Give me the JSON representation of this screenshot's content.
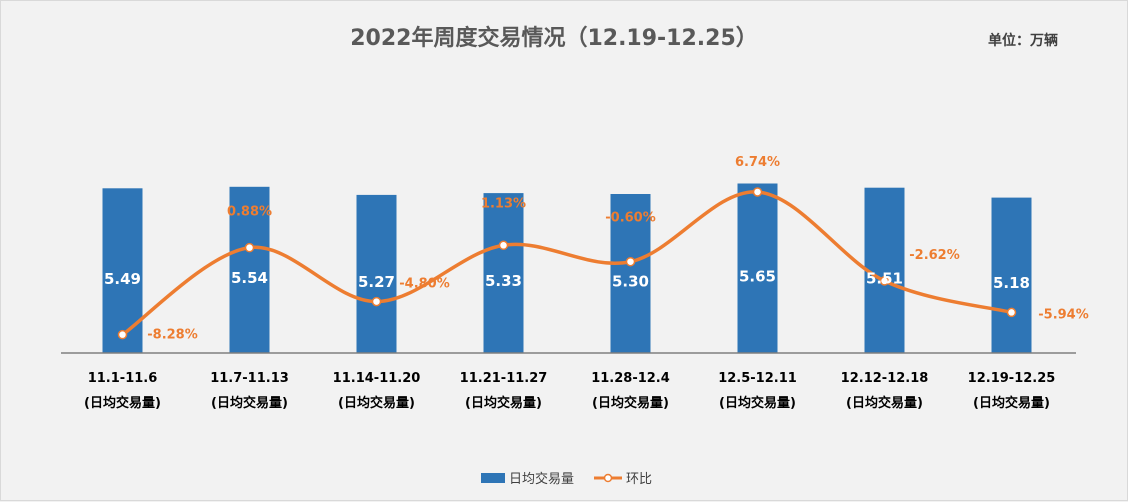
{
  "chart_data": {
    "type": "bar",
    "title": "2022年周度交易情况（12.19-12.25）",
    "unit": "单位：万辆",
    "categories": [
      "11.1-11.6",
      "11.7-11.13",
      "11.14-11.20",
      "11.21-11.27",
      "11.28-12.4",
      "12.5-12.11",
      "12.12-12.18",
      "12.19-12.25"
    ],
    "category_sub": "(日均交易量)",
    "series": [
      {
        "name": "日均交易量",
        "kind": "bar",
        "values": [
          5.49,
          5.54,
          5.27,
          5.33,
          5.3,
          5.65,
          5.51,
          5.18
        ],
        "labels": [
          "5.49",
          "5.54",
          "5.27",
          "5.33",
          "5.30",
          "5.65",
          "5.51",
          "5.18"
        ],
        "color": "#2e75b6"
      },
      {
        "name": "环比",
        "kind": "line",
        "values": [
          -8.28,
          0.88,
          -4.8,
          1.13,
          -0.6,
          6.74,
          -2.62,
          -5.94
        ],
        "labels": [
          "-8.28%",
          "0.88%",
          "-4.80%",
          "1.13%",
          "-0.60%",
          "6.74%",
          "-2.62%",
          "-5.94%"
        ],
        "color": "#ed7d31"
      }
    ],
    "ylim_bar": [
      0,
      8
    ],
    "ylim_line": [
      -10,
      10
    ],
    "legend_position": "bottom"
  }
}
